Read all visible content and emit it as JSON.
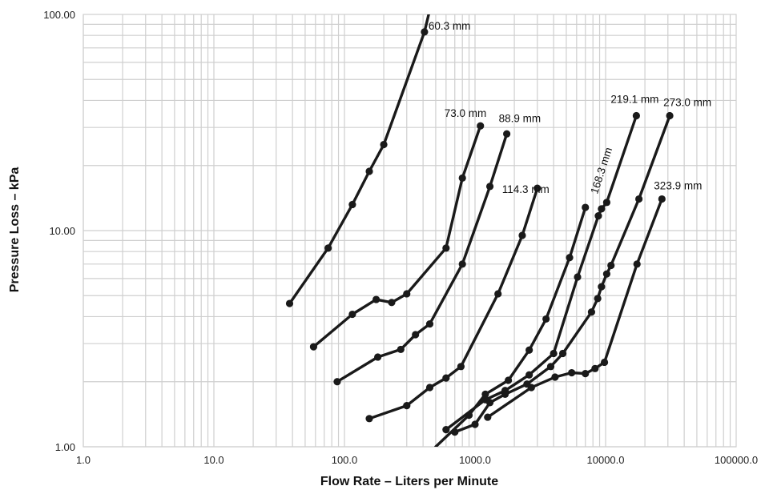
{
  "chart_data": {
    "type": "line",
    "title": "",
    "xlabel": "Flow Rate – Liters per Minute",
    "ylabel": "Pressure Loss – kPa",
    "x_scale": "log",
    "y_scale": "log",
    "xlim": [
      1,
      100000
    ],
    "ylim": [
      1,
      100
    ],
    "grid": true,
    "legend": "none (series labeled at line ends)",
    "x_tick_labels": [
      "1.0",
      "10.0",
      "100.0",
      "1000.0",
      "10000.0",
      "100000.0"
    ],
    "y_tick_labels": [
      "1.00",
      "10.00",
      "100.00"
    ],
    "line_color": "#1a1a1a",
    "series": [
      {
        "name": "60.3 mm",
        "points": [
          [
            38,
            4.6
          ],
          [
            75,
            8.3
          ],
          [
            115,
            13.2
          ],
          [
            155,
            18.8
          ],
          [
            200,
            25
          ],
          [
            410,
            83
          ],
          [
            445,
            102
          ]
        ]
      },
      {
        "name": "73.0 mm",
        "points": [
          [
            58,
            2.9
          ],
          [
            115,
            4.1
          ],
          [
            175,
            4.8
          ],
          [
            230,
            4.65
          ],
          [
            300,
            5.1
          ],
          [
            600,
            8.3
          ],
          [
            800,
            17.5
          ],
          [
            1100,
            30.5
          ]
        ]
      },
      {
        "name": "88.9 mm",
        "points": [
          [
            88,
            2.0
          ],
          [
            180,
            2.6
          ],
          [
            270,
            2.82
          ],
          [
            350,
            3.3
          ],
          [
            450,
            3.7
          ],
          [
            800,
            7.0
          ],
          [
            1300,
            16
          ],
          [
            1750,
            28
          ]
        ]
      },
      {
        "name": "114.3 mm",
        "points": [
          [
            155,
            1.35
          ],
          [
            300,
            1.55
          ],
          [
            450,
            1.88
          ],
          [
            600,
            2.08
          ],
          [
            780,
            2.35
          ],
          [
            1500,
            5.1
          ],
          [
            2300,
            9.5
          ],
          [
            3000,
            15.7
          ]
        ]
      },
      {
        "name": "168.3 mm",
        "points": [
          [
            500,
            1.0
          ],
          [
            900,
            1.4
          ],
          [
            1200,
            1.75
          ],
          [
            1800,
            2.03
          ],
          [
            2600,
            2.8
          ],
          [
            3500,
            3.9
          ],
          [
            5300,
            7.5
          ],
          [
            7000,
            12.8
          ]
        ]
      },
      {
        "name": "219.1 mm",
        "points": [
          [
            600,
            1.2
          ],
          [
            1200,
            1.65
          ],
          [
            1700,
            1.82
          ],
          [
            2600,
            2.15
          ],
          [
            4000,
            2.7
          ],
          [
            6100,
            6.1
          ],
          [
            8800,
            11.7
          ],
          [
            9300,
            12.6
          ],
          [
            10200,
            13.5
          ],
          [
            17200,
            34
          ]
        ]
      },
      {
        "name": "273.0 mm",
        "points": [
          [
            700,
            1.17
          ],
          [
            1000,
            1.27
          ],
          [
            1300,
            1.6
          ],
          [
            1700,
            1.75
          ],
          [
            2500,
            1.95
          ],
          [
            3800,
            2.35
          ],
          [
            4700,
            2.7
          ],
          [
            7800,
            4.2
          ],
          [
            8700,
            4.85
          ],
          [
            9300,
            5.5
          ],
          [
            10200,
            6.3
          ],
          [
            11000,
            6.9
          ],
          [
            18000,
            14
          ],
          [
            31000,
            34
          ]
        ]
      },
      {
        "name": "323.9 mm",
        "points": [
          [
            1250,
            1.37
          ],
          [
            2700,
            1.88
          ],
          [
            4100,
            2.1
          ],
          [
            5500,
            2.2
          ],
          [
            7000,
            2.18
          ],
          [
            8300,
            2.3
          ],
          [
            9800,
            2.46
          ],
          [
            17400,
            7.0
          ],
          [
            27000,
            14
          ]
        ]
      }
    ]
  }
}
